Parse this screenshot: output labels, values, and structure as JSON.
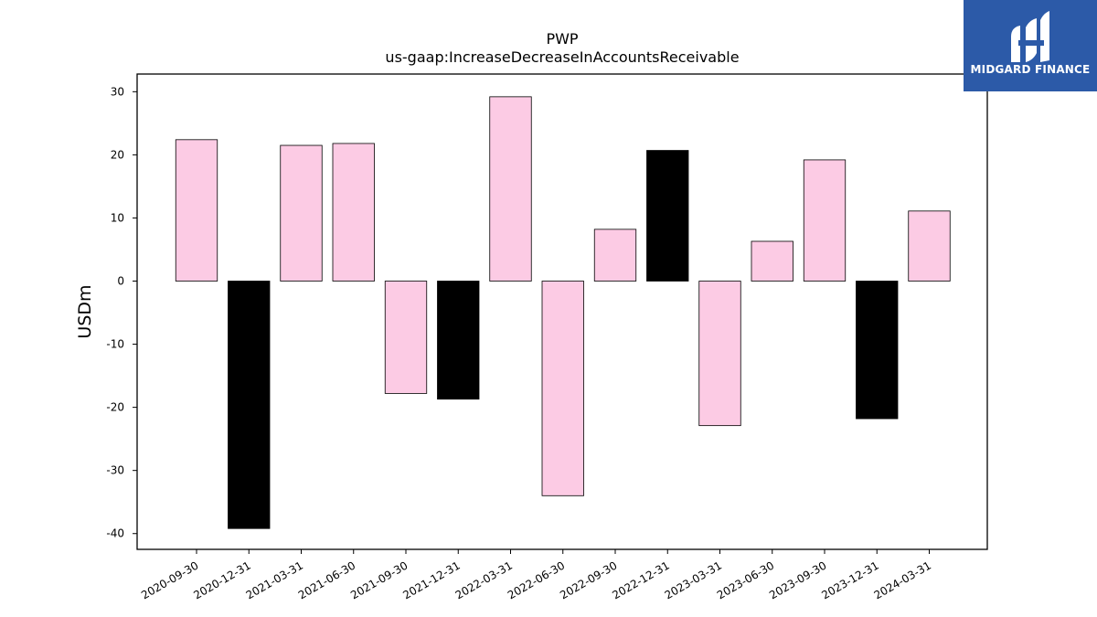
{
  "brand": {
    "name": "MIDGARD FINANCE",
    "color": "#2c5aa8"
  },
  "chart_data": {
    "type": "bar",
    "title": "PWP",
    "subtitle": "us-gaap:IncreaseDecreaseInAccountsReceivable",
    "xlabel": "",
    "ylabel": "USDm",
    "ylim": [
      -42.5,
      32.8
    ],
    "yticks": [
      -40,
      -30,
      -20,
      -10,
      0,
      10,
      20,
      30
    ],
    "grid": false,
    "categories": [
      "2020-09-30",
      "2020-12-31",
      "2021-03-31",
      "2021-06-30",
      "2021-09-30",
      "2021-12-31",
      "2022-03-31",
      "2022-06-30",
      "2022-09-30",
      "2022-12-31",
      "2023-03-31",
      "2023-06-30",
      "2023-09-30",
      "2023-12-31",
      "2024-03-31"
    ],
    "values": [
      22.4,
      -39.2,
      21.5,
      21.8,
      -17.8,
      -18.7,
      29.2,
      -34.0,
      8.2,
      20.7,
      -22.9,
      6.3,
      19.2,
      -21.8,
      11.1
    ],
    "colors": [
      "#fccbe4",
      "#000000",
      "#fccbe4",
      "#fccbe4",
      "#fccbe4",
      "#000000",
      "#fccbe4",
      "#fccbe4",
      "#fccbe4",
      "#000000",
      "#fccbe4",
      "#fccbe4",
      "#fccbe4",
      "#000000",
      "#fccbe4"
    ]
  }
}
